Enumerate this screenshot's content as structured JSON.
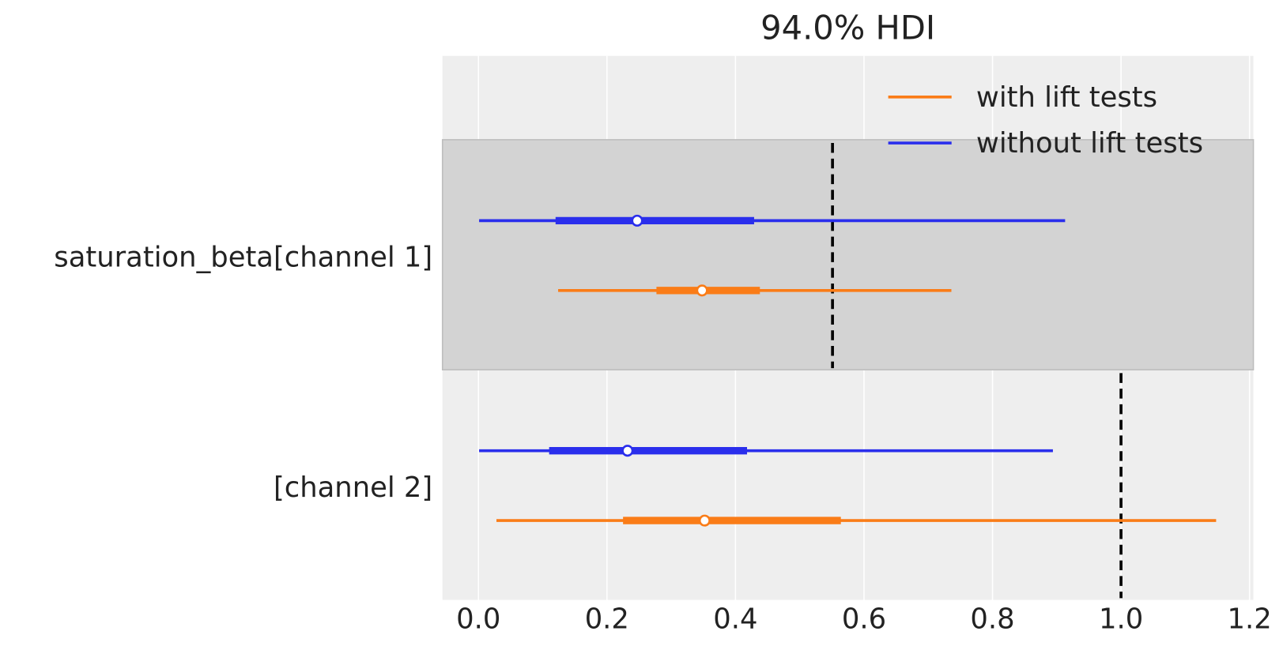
{
  "chart_data": {
    "type": "forest",
    "title": "94.0% HDI",
    "categories": [
      "saturation_beta[channel 1]",
      "[channel 2]"
    ],
    "series": [
      {
        "name": "with lift tests",
        "color": "#fa7c17",
        "hdi_low": [
          0.124,
          0.028
        ],
        "hdi_high": [
          0.736,
          1.148
        ],
        "q_low": [
          0.277,
          0.225
        ],
        "q_high": [
          0.438,
          0.564
        ],
        "median": [
          0.348,
          0.352
        ]
      },
      {
        "name": "without lift tests",
        "color": "#2a2eec",
        "hdi_low": [
          0.001,
          0.001
        ],
        "hdi_high": [
          0.913,
          0.894
        ],
        "q_low": [
          0.12,
          0.11
        ],
        "q_high": [
          0.429,
          0.418
        ],
        "median": [
          0.247,
          0.232
        ]
      }
    ],
    "reference_lines": [
      0.551,
      1.0
    ],
    "xlim": [
      -0.056,
      1.206
    ],
    "xticks": [
      {
        "value": 0,
        "label": "0.0"
      },
      0.2,
      0.4,
      0.6,
      0.8,
      {
        "value": 1,
        "label": "1.0"
      },
      1.2
    ],
    "grid": true,
    "legend": "upper right"
  }
}
